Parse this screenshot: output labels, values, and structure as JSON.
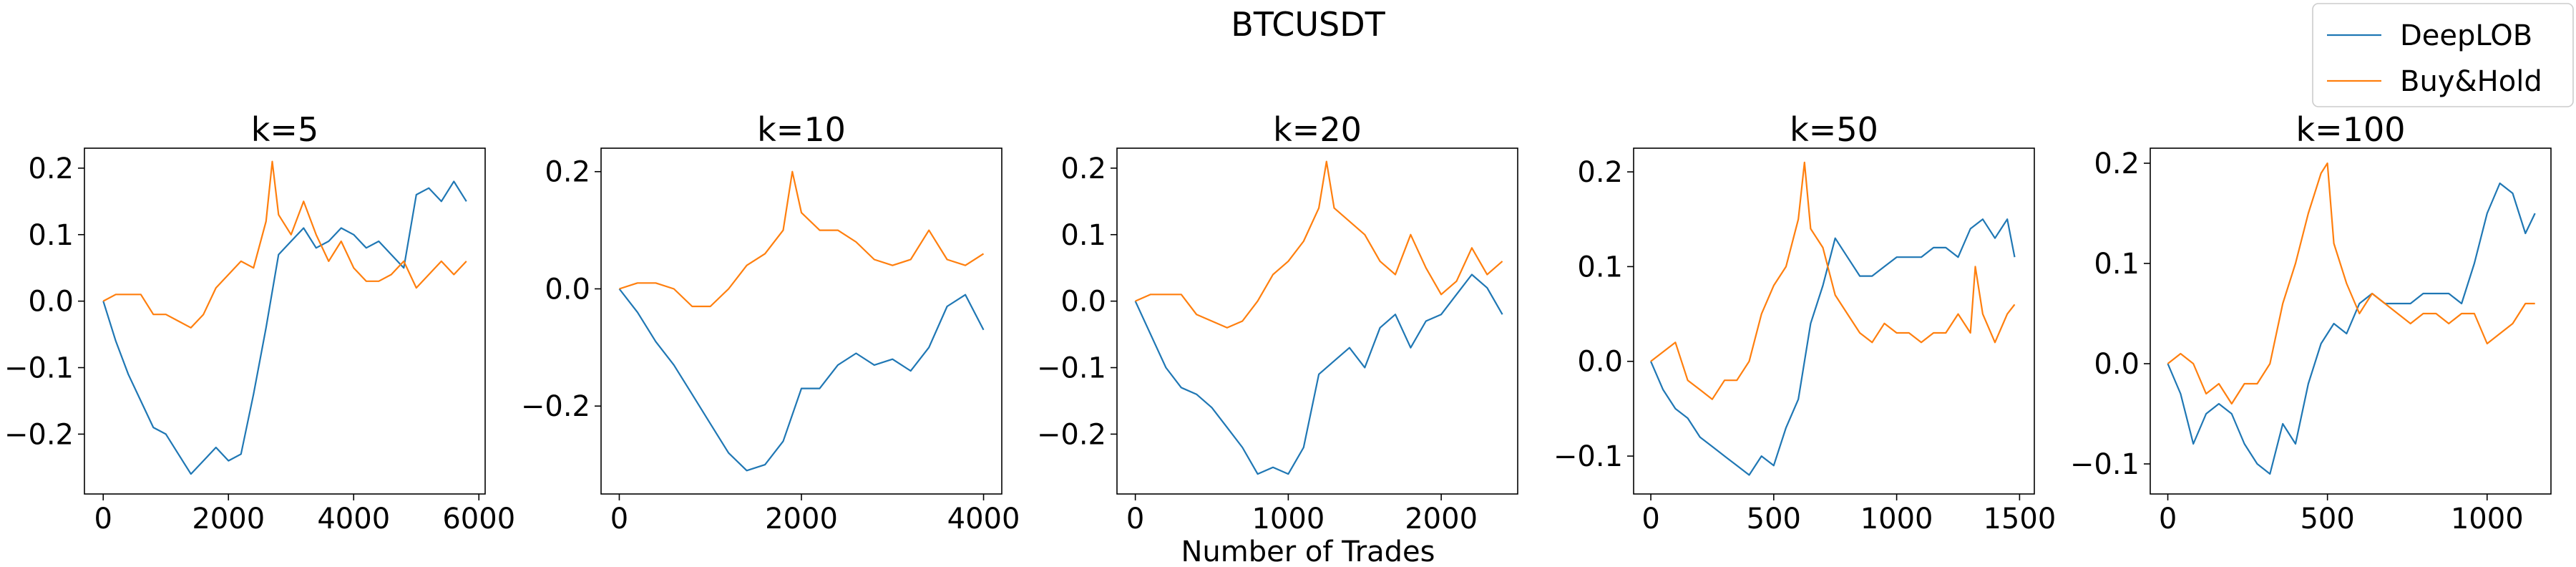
{
  "figure": {
    "suptitle": "BTCUSDT",
    "xlabel": "Number of Trades"
  },
  "legend": {
    "placement": "top-right",
    "entries": [
      {
        "label": "DeepLOB",
        "color": "#1f77b4"
      },
      {
        "label": "Buy&Hold",
        "color": "#ff7f0e"
      }
    ]
  },
  "chart_data": [
    {
      "type": "line",
      "title": "k=5",
      "xlim": [
        -300,
        6100
      ],
      "ylim": [
        -0.29,
        0.23
      ],
      "xticks": [
        0,
        2000,
        4000,
        6000
      ],
      "yticks": [
        -0.2,
        -0.1,
        0.0,
        0.1,
        0.2
      ],
      "ytick_labels": [
        "−0.2",
        "−0.1",
        "0.0",
        "0.1",
        "0.2"
      ],
      "series": [
        {
          "name": "DeepLOB",
          "color": "#1f77b4",
          "x": [
            0,
            200,
            400,
            600,
            800,
            1000,
            1200,
            1400,
            1600,
            1800,
            2000,
            2200,
            2400,
            2600,
            2800,
            3000,
            3200,
            3400,
            3600,
            3800,
            4000,
            4200,
            4400,
            4600,
            4800,
            5000,
            5200,
            5400,
            5600,
            5800
          ],
          "y": [
            0.0,
            -0.06,
            -0.11,
            -0.15,
            -0.19,
            -0.2,
            -0.23,
            -0.26,
            -0.24,
            -0.22,
            -0.24,
            -0.23,
            -0.14,
            -0.04,
            0.07,
            0.09,
            0.11,
            0.08,
            0.09,
            0.11,
            0.1,
            0.08,
            0.09,
            0.07,
            0.05,
            0.16,
            0.17,
            0.15,
            0.18,
            0.15
          ]
        },
        {
          "name": "Buy&Hold",
          "color": "#ff7f0e",
          "x": [
            0,
            200,
            400,
            600,
            800,
            1000,
            1200,
            1400,
            1600,
            1800,
            2000,
            2200,
            2400,
            2600,
            2700,
            2800,
            3000,
            3200,
            3400,
            3600,
            3800,
            4000,
            4200,
            4400,
            4600,
            4800,
            5000,
            5200,
            5400,
            5600,
            5800
          ],
          "y": [
            0.0,
            0.01,
            0.01,
            0.01,
            -0.02,
            -0.02,
            -0.03,
            -0.04,
            -0.02,
            0.02,
            0.04,
            0.06,
            0.05,
            0.12,
            0.21,
            0.13,
            0.1,
            0.15,
            0.1,
            0.06,
            0.09,
            0.05,
            0.03,
            0.03,
            0.04,
            0.06,
            0.02,
            0.04,
            0.06,
            0.04,
            0.06
          ]
        }
      ]
    },
    {
      "type": "line",
      "title": "k=10",
      "xlim": [
        -200,
        4200
      ],
      "ylim": [
        -0.35,
        0.24
      ],
      "xticks": [
        0,
        2000,
        4000
      ],
      "yticks": [
        -0.2,
        0.0,
        0.2
      ],
      "ytick_labels": [
        "−0.2",
        "0.0",
        "0.2"
      ],
      "series": [
        {
          "name": "DeepLOB",
          "color": "#1f77b4",
          "x": [
            0,
            200,
            400,
            600,
            800,
            1000,
            1200,
            1400,
            1600,
            1800,
            2000,
            2200,
            2400,
            2600,
            2800,
            3000,
            3200,
            3400,
            3600,
            3800,
            4000
          ],
          "y": [
            0.0,
            -0.04,
            -0.09,
            -0.13,
            -0.18,
            -0.23,
            -0.28,
            -0.31,
            -0.3,
            -0.26,
            -0.17,
            -0.17,
            -0.13,
            -0.11,
            -0.13,
            -0.12,
            -0.14,
            -0.1,
            -0.03,
            -0.01,
            -0.07
          ]
        },
        {
          "name": "Buy&Hold",
          "color": "#ff7f0e",
          "x": [
            0,
            200,
            400,
            600,
            800,
            1000,
            1200,
            1400,
            1600,
            1800,
            1900,
            2000,
            2200,
            2400,
            2600,
            2800,
            3000,
            3200,
            3400,
            3600,
            3800,
            4000
          ],
          "y": [
            0.0,
            0.01,
            0.01,
            0.0,
            -0.03,
            -0.03,
            0.0,
            0.04,
            0.06,
            0.1,
            0.2,
            0.13,
            0.1,
            0.1,
            0.08,
            0.05,
            0.04,
            0.05,
            0.1,
            0.05,
            0.04,
            0.06
          ]
        }
      ]
    },
    {
      "type": "line",
      "title": "k=20",
      "xlim": [
        -120,
        2500
      ],
      "ylim": [
        -0.29,
        0.23
      ],
      "xticks": [
        0,
        1000,
        2000
      ],
      "yticks": [
        -0.2,
        -0.1,
        0.0,
        0.1,
        0.2
      ],
      "ytick_labels": [
        "−0.2",
        "−0.1",
        "0.0",
        "0.1",
        "0.2"
      ],
      "series": [
        {
          "name": "DeepLOB",
          "color": "#1f77b4",
          "x": [
            0,
            100,
            200,
            300,
            400,
            500,
            600,
            700,
            800,
            900,
            1000,
            1100,
            1200,
            1300,
            1400,
            1500,
            1600,
            1700,
            1800,
            1900,
            2000,
            2100,
            2200,
            2300,
            2400
          ],
          "y": [
            0.0,
            -0.05,
            -0.1,
            -0.13,
            -0.14,
            -0.16,
            -0.19,
            -0.22,
            -0.26,
            -0.25,
            -0.26,
            -0.22,
            -0.11,
            -0.09,
            -0.07,
            -0.1,
            -0.04,
            -0.02,
            -0.07,
            -0.03,
            -0.02,
            0.01,
            0.04,
            0.02,
            -0.02
          ]
        },
        {
          "name": "Buy&Hold",
          "color": "#ff7f0e",
          "x": [
            0,
            100,
            200,
            300,
            400,
            500,
            600,
            700,
            800,
            900,
            1000,
            1100,
            1200,
            1250,
            1300,
            1400,
            1500,
            1600,
            1700,
            1800,
            1900,
            2000,
            2100,
            2200,
            2300,
            2400
          ],
          "y": [
            0.0,
            0.01,
            0.01,
            0.01,
            -0.02,
            -0.03,
            -0.04,
            -0.03,
            0.0,
            0.04,
            0.06,
            0.09,
            0.14,
            0.21,
            0.14,
            0.12,
            0.1,
            0.06,
            0.04,
            0.1,
            0.05,
            0.01,
            0.03,
            0.08,
            0.04,
            0.06
          ]
        }
      ]
    },
    {
      "type": "line",
      "title": "k=50",
      "xlim": [
        -70,
        1560
      ],
      "ylim": [
        -0.14,
        0.225
      ],
      "xticks": [
        0,
        500,
        1000,
        1500
      ],
      "yticks": [
        -0.1,
        0.0,
        0.1,
        0.2
      ],
      "ytick_labels": [
        "−0.1",
        "0.0",
        "0.1",
        "0.2"
      ],
      "series": [
        {
          "name": "DeepLOB",
          "color": "#1f77b4",
          "x": [
            0,
            50,
            100,
            150,
            200,
            250,
            300,
            350,
            400,
            450,
            500,
            550,
            600,
            650,
            700,
            750,
            800,
            850,
            900,
            950,
            1000,
            1050,
            1100,
            1150,
            1200,
            1250,
            1300,
            1350,
            1400,
            1450,
            1480
          ],
          "y": [
            0.0,
            -0.03,
            -0.05,
            -0.06,
            -0.08,
            -0.09,
            -0.1,
            -0.11,
            -0.12,
            -0.1,
            -0.11,
            -0.07,
            -0.04,
            0.04,
            0.08,
            0.13,
            0.11,
            0.09,
            0.09,
            0.1,
            0.11,
            0.11,
            0.11,
            0.12,
            0.12,
            0.11,
            0.14,
            0.15,
            0.13,
            0.15,
            0.11
          ]
        },
        {
          "name": "Buy&Hold",
          "color": "#ff7f0e",
          "x": [
            0,
            50,
            100,
            150,
            200,
            250,
            300,
            350,
            400,
            450,
            500,
            550,
            600,
            625,
            650,
            700,
            750,
            800,
            850,
            900,
            950,
            1000,
            1050,
            1100,
            1150,
            1200,
            1250,
            1300,
            1320,
            1350,
            1400,
            1450,
            1480
          ],
          "y": [
            0.0,
            0.01,
            0.02,
            -0.02,
            -0.03,
            -0.04,
            -0.02,
            -0.02,
            0.0,
            0.05,
            0.08,
            0.1,
            0.15,
            0.21,
            0.14,
            0.12,
            0.07,
            0.05,
            0.03,
            0.02,
            0.04,
            0.03,
            0.03,
            0.02,
            0.03,
            0.03,
            0.05,
            0.03,
            0.1,
            0.05,
            0.02,
            0.05,
            0.06
          ]
        }
      ]
    },
    {
      "type": "line",
      "title": "k=100",
      "xlim": [
        -55,
        1200
      ],
      "ylim": [
        -0.13,
        0.215
      ],
      "xticks": [
        0,
        500,
        1000
      ],
      "yticks": [
        -0.1,
        0.0,
        0.1,
        0.2
      ],
      "ytick_labels": [
        "−0.1",
        "0.0",
        "0.1",
        "0.2"
      ],
      "series": [
        {
          "name": "DeepLOB",
          "color": "#1f77b4",
          "x": [
            0,
            40,
            80,
            120,
            160,
            200,
            240,
            280,
            320,
            360,
            400,
            440,
            480,
            520,
            560,
            600,
            640,
            680,
            720,
            760,
            800,
            840,
            880,
            920,
            960,
            1000,
            1040,
            1080,
            1120,
            1150
          ],
          "y": [
            0.0,
            -0.03,
            -0.08,
            -0.05,
            -0.04,
            -0.05,
            -0.08,
            -0.1,
            -0.11,
            -0.06,
            -0.08,
            -0.02,
            0.02,
            0.04,
            0.03,
            0.06,
            0.07,
            0.06,
            0.06,
            0.06,
            0.07,
            0.07,
            0.07,
            0.06,
            0.1,
            0.15,
            0.18,
            0.17,
            0.13,
            0.15
          ]
        },
        {
          "name": "Buy&Hold",
          "color": "#ff7f0e",
          "x": [
            0,
            40,
            80,
            120,
            160,
            200,
            240,
            280,
            320,
            360,
            400,
            440,
            480,
            500,
            520,
            560,
            600,
            640,
            680,
            720,
            760,
            800,
            840,
            880,
            920,
            960,
            1000,
            1040,
            1080,
            1120,
            1150
          ],
          "y": [
            0.0,
            0.01,
            0.0,
            -0.03,
            -0.02,
            -0.04,
            -0.02,
            -0.02,
            0.0,
            0.06,
            0.1,
            0.15,
            0.19,
            0.2,
            0.12,
            0.08,
            0.05,
            0.07,
            0.06,
            0.05,
            0.04,
            0.05,
            0.05,
            0.04,
            0.05,
            0.05,
            0.02,
            0.03,
            0.04,
            0.06,
            0.06
          ]
        }
      ]
    }
  ]
}
